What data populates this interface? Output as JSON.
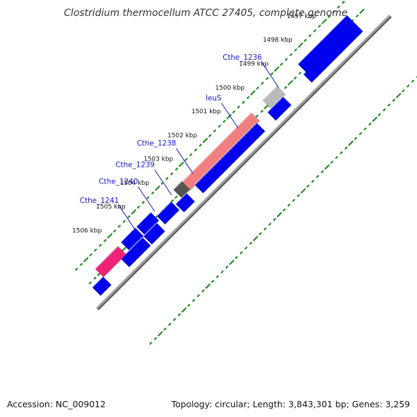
{
  "title": "Clostridium thermocellum ATCC 27405, complete genome",
  "footer": {
    "accession": "Accession: NC_009012",
    "summary": "Topology: circular; Length: 3,843,301 bp; Genes: 3,259"
  },
  "ticks": [
    {
      "label": "1497 kbp",
      "kbp": 1497
    },
    {
      "label": "1498 kbp",
      "kbp": 1498
    },
    {
      "label": "1499 kbp",
      "kbp": 1499
    },
    {
      "label": "1500 kbp",
      "kbp": 1500
    },
    {
      "label": "1501 kbp",
      "kbp": 1501
    },
    {
      "label": "1502 kbp",
      "kbp": 1502
    },
    {
      "label": "1503 kbp",
      "kbp": 1503
    },
    {
      "label": "1504 kbp",
      "kbp": 1504
    },
    {
      "label": "1505 kbp",
      "kbp": 1505
    },
    {
      "label": "1506 kbp",
      "kbp": 1506
    }
  ],
  "gene_labels": [
    {
      "label": "Cthe_1236",
      "kbp": 1499.35
    },
    {
      "label": "leuS",
      "kbp": 1501.05
    },
    {
      "label": "Cthe_1238",
      "kbp": 1502.95
    },
    {
      "label": "Cthe_1239",
      "kbp": 1503.85
    },
    {
      "label": "Cthe_1240",
      "kbp": 1504.55
    },
    {
      "label": "Cthe_1241",
      "kbp": 1505.35
    }
  ],
  "colors": {
    "cds": "#0000ee",
    "trna": "#bbbbbb",
    "highlight": "#f08080",
    "pink": "#ee2277",
    "dark": "#555555",
    "backbone": "#888888",
    "tick": "#228b22",
    "gene_label": "#1515c8"
  }
}
